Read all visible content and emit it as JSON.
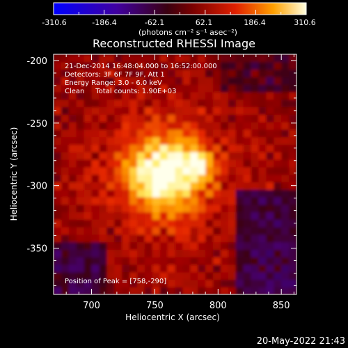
{
  "chart_data": {
    "type": "heatmap",
    "title": "Reconstructed RHESSI Image",
    "xlabel": "Heliocentric X (arcsec)",
    "ylabel": "Heliocentric Y (arcsec)",
    "xlim": [
      670,
      862
    ],
    "ylim": [
      -387,
      -195
    ],
    "x_ticks": [
      700,
      750,
      800,
      850
    ],
    "y_ticks": [
      -200,
      -250,
      -300,
      -350
    ],
    "colorbar": {
      "min": -310.6,
      "max": 310.6,
      "ticks": [
        "-310.6",
        "-186.4",
        "-62.1",
        "62.1",
        "186.4",
        "310.6"
      ],
      "unit_label": "(photons cm⁻² s⁻¹ asec⁻²)"
    },
    "annotations": [
      "21-Dec-2014 16:48:04.000 to 16:52:00.000",
      "Detectors: 3F 6F 7F 9F, Att 1",
      "Energy Range: 3.0 - 6.0 keV",
      "Clean     Total counts: 1.90E+03"
    ],
    "peak_label": "Position of Peak = [758,-290]",
    "peak": {
      "x": 758,
      "y": -290,
      "value": 310.6
    },
    "secondary_source": {
      "x": 787,
      "y": -282
    },
    "grid": false
  },
  "footer": {
    "timestamp": "20-May-2022 21:43"
  }
}
